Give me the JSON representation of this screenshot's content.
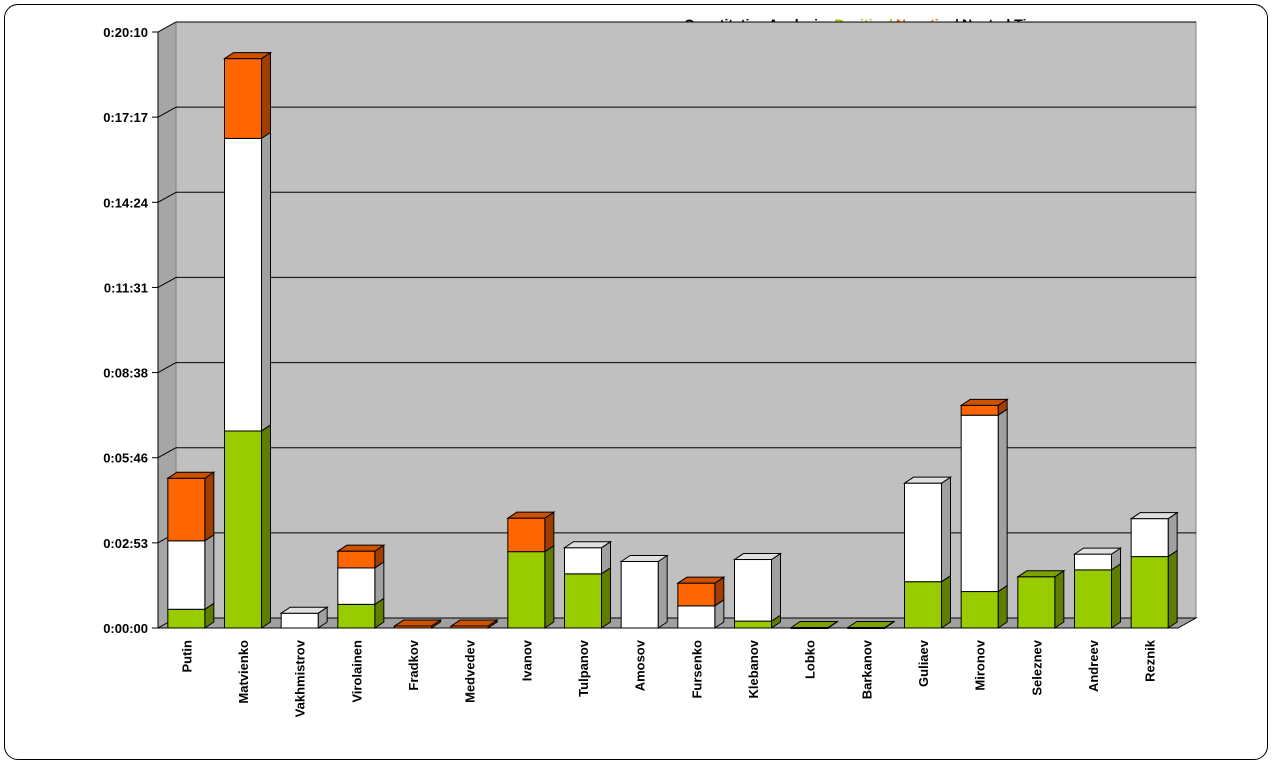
{
  "chart_data": {
    "type": "bar",
    "stacked": true,
    "three_d": true,
    "title_parts": [
      {
        "key": "prefix",
        "text": "Quantitative Analysis: "
      },
      {
        "key": "positive",
        "text": "Positive/ "
      },
      {
        "key": "negative",
        "text": "Negative"
      },
      {
        "key": "neutral",
        "text": "/ Neutral Time"
      }
    ],
    "y_tick_labels": [
      "0:00:00",
      "0:02:53",
      "0:05:46",
      "0:08:38",
      "0:11:31",
      "0:14:24",
      "0:17:17",
      "0:20:10"
    ],
    "y_unit": "seconds",
    "ylim": [
      0,
      1210
    ],
    "grid": true,
    "categories": [
      "Putin",
      "Matvienko",
      "Vakhmistrov",
      "Virolainen",
      "Fradkov",
      "Medvedev",
      "Ivanov",
      "Tulpanov",
      "Amosov",
      "Fursenko",
      "Klebanov",
      "Lobko",
      "Barkanov",
      "Guliaev",
      "Mironov",
      "Seleznev",
      "Andreev",
      "Reznik"
    ],
    "series": [
      {
        "name": "Positive",
        "color": "#99cc00",
        "values": [
          38,
          400,
          0,
          48,
          0,
          0,
          155,
          110,
          0,
          0,
          14,
          1,
          1,
          94,
          74,
          104,
          118,
          145
        ]
      },
      {
        "name": "Neutral",
        "color": "#ffffff",
        "values": [
          139,
          594,
          30,
          74,
          0,
          0,
          0,
          53,
          135,
          45,
          125,
          0,
          0,
          200,
          358,
          0,
          32,
          77
        ]
      },
      {
        "name": "Negative",
        "color": "#ff6600",
        "values": [
          127,
          162,
          0,
          34,
          4,
          4,
          68,
          0,
          0,
          46,
          0,
          0,
          0,
          0,
          20,
          0,
          0,
          0
        ]
      }
    ]
  }
}
